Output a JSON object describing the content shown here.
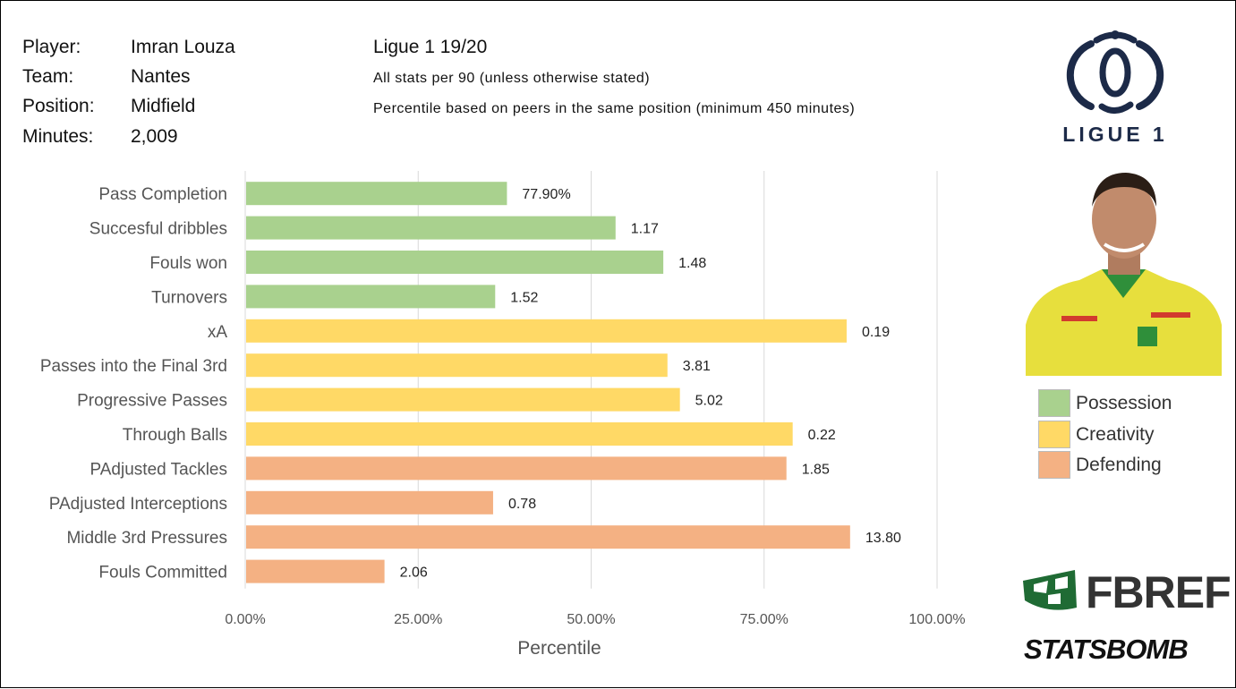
{
  "info": [
    {
      "key": "Player:",
      "value": "Imran Louza"
    },
    {
      "key": "Team:",
      "value": "Nantes"
    },
    {
      "key": "Position:",
      "value": "Midfield"
    },
    {
      "key": "Minutes:",
      "value": "2,009"
    }
  ],
  "subtitle": {
    "season": "Ligue 1 19/20",
    "note1": "All stats per 90 (unless otherwise stated)",
    "note2": "Percentile based on peers in the same position (minimum 450 minutes)"
  },
  "logos": {
    "league_text": "LIGUE 1",
    "fbref": "FBREF",
    "statsbomb": "STATSBOMB"
  },
  "colors": {
    "Possession": "#a9d18e",
    "Creativity": "#ffd966",
    "Defending": "#f4b183",
    "grid": "#d9d9d9"
  },
  "chart_data": {
    "type": "bar",
    "orientation": "horizontal",
    "xlabel": "Percentile",
    "xlim": [
      0,
      1
    ],
    "xticks": [
      {
        "value": 0,
        "label": "0.00%"
      },
      {
        "value": 0.25,
        "label": "25.00%"
      },
      {
        "value": 0.5,
        "label": "50.00%"
      },
      {
        "value": 0.75,
        "label": "75.00%"
      },
      {
        "value": 1,
        "label": "100.00%"
      }
    ],
    "grid": true,
    "legend_position": "right",
    "legend": [
      "Possession",
      "Creativity",
      "Defending"
    ],
    "bars": [
      {
        "category": "Pass Completion",
        "percentile": 0.377,
        "label": "77.90%",
        "group": "Possession"
      },
      {
        "category": "Succesful dribbles",
        "percentile": 0.534,
        "label": "1.17",
        "group": "Possession"
      },
      {
        "category": "Fouls won",
        "percentile": 0.603,
        "label": "1.48",
        "group": "Possession"
      },
      {
        "category": "Turnovers",
        "percentile": 0.36,
        "label": "1.52",
        "group": "Possession"
      },
      {
        "category": "xA",
        "percentile": 0.868,
        "label": "0.19",
        "group": "Creativity"
      },
      {
        "category": "Passes into the Final 3rd",
        "percentile": 0.609,
        "label": "3.81",
        "group": "Creativity"
      },
      {
        "category": "Progressive Passes",
        "percentile": 0.627,
        "label": "5.02",
        "group": "Creativity"
      },
      {
        "category": "Through Balls",
        "percentile": 0.79,
        "label": "0.22",
        "group": "Creativity"
      },
      {
        "category": "PAdjusted Tackles",
        "percentile": 0.781,
        "label": "1.85",
        "group": "Defending"
      },
      {
        "category": "PAdjusted Interceptions",
        "percentile": 0.357,
        "label": "0.78",
        "group": "Defending"
      },
      {
        "category": "Middle 3rd Pressures",
        "percentile": 0.873,
        "label": "13.80",
        "group": "Defending"
      },
      {
        "category": "Fouls Committed",
        "percentile": 0.2,
        "label": "2.06",
        "group": "Defending"
      }
    ]
  }
}
